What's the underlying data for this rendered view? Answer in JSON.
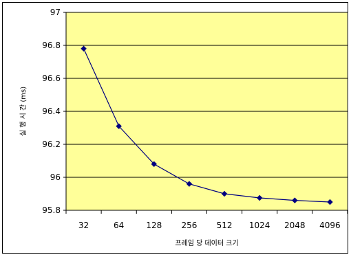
{
  "chart_data": {
    "type": "line",
    "title": "",
    "xlabel": "프레임 당 데이터 크기",
    "ylabel": "실 행 시 간 (ms)",
    "categories": [
      "32",
      "64",
      "128",
      "256",
      "512",
      "1024",
      "2048",
      "4096"
    ],
    "series": [
      {
        "values": [
          96.78,
          96.31,
          96.08,
          95.96,
          95.9,
          95.875,
          95.86,
          95.85
        ]
      }
    ],
    "ylim": [
      95.8,
      97
    ],
    "yticks": [
      "95.8",
      "96",
      "96.2",
      "96.4",
      "96.6",
      "96.8",
      "97"
    ],
    "grid": "horizontal",
    "legend": "none",
    "colors": {
      "plot_background": "#FFFF99",
      "line": "#000080",
      "marker": "#000080",
      "gridline": "#000000"
    }
  }
}
